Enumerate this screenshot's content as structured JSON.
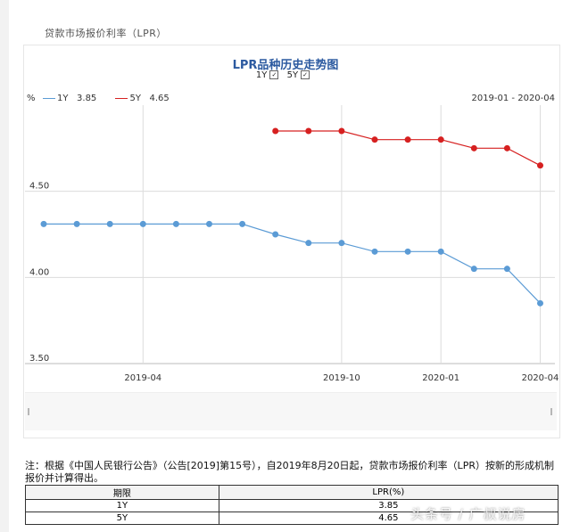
{
  "section_title": "贷款市场报价利率（LPR）",
  "chart_data": {
    "type": "line",
    "title": "LPR品种历史走势图",
    "toggles": [
      {
        "label": "1Y",
        "checked": true
      },
      {
        "label": "5Y",
        "checked": true
      }
    ],
    "unit_label": "%",
    "date_range": "2019-01 - 2020-04",
    "ylim": [
      3.5,
      5.0
    ],
    "y_ticks": [
      "4.50",
      "4.00",
      "3.50"
    ],
    "x_ticks": [
      "2019-04",
      "2019-10",
      "2020-01",
      "2020-04"
    ],
    "grid": true,
    "legend_position": "top-left",
    "series": [
      {
        "name": "1Y",
        "latest_label": "3.85",
        "color": "#5b9bd5",
        "x": [
          "2019-01",
          "2019-02",
          "2019-03",
          "2019-04",
          "2019-05",
          "2019-06",
          "2019-07",
          "2019-08",
          "2019-09",
          "2019-10",
          "2019-11",
          "2019-12",
          "2020-01",
          "2020-02",
          "2020-03",
          "2020-04"
        ],
        "values": [
          4.31,
          4.31,
          4.31,
          4.31,
          4.31,
          4.31,
          4.31,
          4.25,
          4.2,
          4.2,
          4.15,
          4.15,
          4.15,
          4.05,
          4.05,
          3.85
        ]
      },
      {
        "name": "5Y",
        "latest_label": "4.65",
        "color": "#d62020",
        "x": [
          "2019-08",
          "2019-09",
          "2019-10",
          "2019-11",
          "2019-12",
          "2020-01",
          "2020-02",
          "2020-03",
          "2020-04"
        ],
        "values": [
          4.85,
          4.85,
          4.85,
          4.8,
          4.8,
          4.8,
          4.75,
          4.75,
          4.65
        ]
      }
    ]
  },
  "note": "注：根据《中国人民银行公告》（公告[2019]第15号），自2019年8月20日起，贷款市场报价利率（LPR）按新的形成机制报价并计算得出。",
  "table": {
    "headers": [
      "期限",
      "LPR(%)"
    ],
    "rows": [
      [
        "1Y",
        "3.85"
      ],
      [
        "5Y",
        "4.65"
      ]
    ]
  },
  "watermark": "头条号 / 广叔说房"
}
